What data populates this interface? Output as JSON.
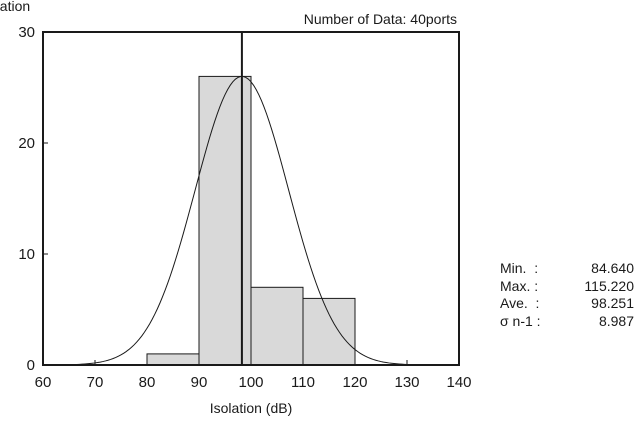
{
  "chart_data": {
    "type": "bar",
    "title": "",
    "ylabel": "Isolation",
    "xlabel": "Isolation (dB)",
    "header_note": "Number of Data: 40ports",
    "xlim": [
      60,
      140
    ],
    "ylim": [
      0,
      30
    ],
    "x_ticks": [
      "60",
      "70",
      "80",
      "90",
      "100",
      "110",
      "120",
      "130",
      "140"
    ],
    "y_ticks": [
      "0",
      "10",
      "20",
      "30"
    ],
    "bins": [
      {
        "from": 80,
        "to": 90,
        "count": 1
      },
      {
        "from": 90,
        "to": 100,
        "count": 26
      },
      {
        "from": 100,
        "to": 110,
        "count": 7
      },
      {
        "from": 110,
        "to": 120,
        "count": 6
      }
    ],
    "mean_line_x": 98.251,
    "normal_curve": {
      "mean": 98.251,
      "sd": 8.987,
      "peak": 26
    },
    "grid": false,
    "bar_color": "#d9d9d9",
    "line_color": "#1a1a1a"
  },
  "stats": [
    {
      "label": "Min.  :",
      "value": "84.640"
    },
    {
      "label": "Max. :",
      "value": "115.220"
    },
    {
      "label": "Ave.  :",
      "value": "98.251"
    },
    {
      "label": "σ n-1 :",
      "value": "8.987"
    }
  ]
}
